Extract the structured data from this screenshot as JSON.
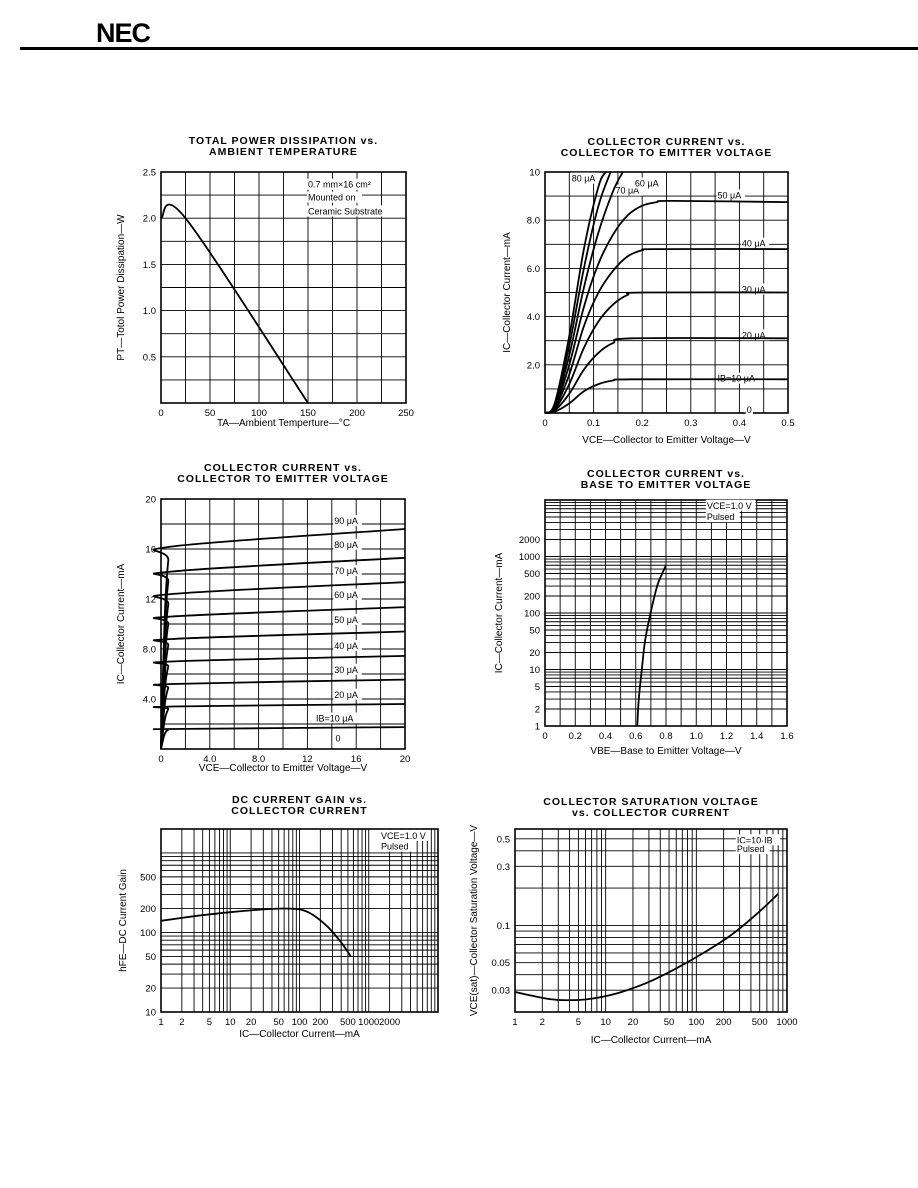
{
  "header": {
    "logo": "NEC"
  },
  "chart_data": [
    {
      "type": "line",
      "title": "TOTAL POWER DISSIPATION vs.",
      "subtitle": "AMBIENT TEMPERATURE",
      "xlabel": "TA—Ambient Temperture—°C",
      "ylabel": "PT—Totol Power Dissipation—W",
      "xscale": "linear",
      "yscale": "linear",
      "xlim": [
        0,
        250
      ],
      "ylim": [
        0,
        2.5
      ],
      "xticks": [
        0,
        50,
        100,
        150,
        200,
        250
      ],
      "xtick_labels": [
        "0",
        "50",
        "100",
        "150",
        "200",
        "250"
      ],
      "yticks": [
        0.5,
        1.0,
        1.5,
        2.0,
        2.5
      ],
      "ytick_labels": [
        "0.5",
        "1.0",
        "1.5",
        "2.0",
        "2.5"
      ],
      "grid": true,
      "annotations": [
        {
          "text": "0.7 mm×16 cm²",
          "x": 150,
          "y": 2.33
        },
        {
          "text": "Mounted on",
          "x": 150,
          "y": 2.19
        },
        {
          "text": "Ceramic Substrate",
          "x": 150,
          "y": 2.04
        }
      ],
      "series": [
        {
          "x": [
            0,
            25,
            150
          ],
          "y": [
            2.0,
            2.0,
            0.0
          ]
        }
      ]
    },
    {
      "type": "line",
      "title": "COLLECTOR CURRENT vs.",
      "subtitle": "COLLECTOR TO EMITTER VOLTAGE",
      "xlabel": "VCE—Collector to Emitter Voltage—V",
      "ylabel": "IC—Collector Current—mA",
      "xscale": "linear",
      "yscale": "linear",
      "xlim": [
        0,
        0.5
      ],
      "ylim": [
        0,
        10
      ],
      "xticks": [
        0,
        0.1,
        0.2,
        0.3,
        0.4,
        0.5
      ],
      "xtick_labels": [
        "0",
        "0.1",
        "0.2",
        "0.3",
        "0.4",
        "0.5"
      ],
      "yticks": [
        2,
        4,
        6,
        8,
        10
      ],
      "ytick_labels": [
        "2.0",
        "4.0",
        "6.0",
        "8.0",
        "10"
      ],
      "grid": true,
      "annotations": [
        {
          "text": "80 μA",
          "x": 0.055,
          "y": 9.6
        },
        {
          "text": "70 μA",
          "x": 0.145,
          "y": 9.1
        },
        {
          "text": "60 μA",
          "x": 0.185,
          "y": 9.4
        },
        {
          "text": "50 μA",
          "x": 0.355,
          "y": 8.9
        },
        {
          "text": "40 μA",
          "x": 0.405,
          "y": 6.9
        },
        {
          "text": "30 μA",
          "x": 0.405,
          "y": 5.0
        },
        {
          "text": "20 μA",
          "x": 0.405,
          "y": 3.1
        },
        {
          "text": "IB=10 μA",
          "x": 0.355,
          "y": 1.3
        },
        {
          "text": "0",
          "x": 0.415,
          "y": 0.0
        }
      ],
      "series": [
        {
          "x": [
            0,
            0.02,
            0.05,
            0.08,
            0.11,
            0.14,
            0.18,
            0.5
          ],
          "y": [
            0,
            0.05,
            0.4,
            0.9,
            1.2,
            1.35,
            1.4,
            1.4
          ]
        },
        {
          "x": [
            0,
            0.02,
            0.05,
            0.08,
            0.11,
            0.14,
            0.18,
            0.5
          ],
          "y": [
            0,
            0.1,
            0.8,
            1.8,
            2.5,
            2.9,
            3.1,
            3.1
          ]
        },
        {
          "x": [
            0,
            0.02,
            0.05,
            0.08,
            0.11,
            0.14,
            0.17,
            0.2,
            0.5
          ],
          "y": [
            0,
            0.15,
            1.2,
            2.7,
            3.8,
            4.5,
            4.9,
            5.0,
            5.0
          ]
        },
        {
          "x": [
            0,
            0.02,
            0.05,
            0.08,
            0.11,
            0.14,
            0.17,
            0.2,
            0.23,
            0.5
          ],
          "y": [
            0,
            0.2,
            1.6,
            3.6,
            5.0,
            5.9,
            6.5,
            6.75,
            6.8,
            6.8
          ]
        },
        {
          "x": [
            0,
            0.02,
            0.05,
            0.08,
            0.11,
            0.14,
            0.17,
            0.2,
            0.23,
            0.26,
            0.5
          ],
          "y": [
            0,
            0.25,
            2.0,
            4.4,
            6.2,
            7.4,
            8.2,
            8.6,
            8.75,
            8.8,
            8.75
          ]
        },
        {
          "x": [
            0,
            0.02,
            0.05,
            0.08,
            0.11,
            0.14,
            0.16
          ],
          "y": [
            0,
            0.3,
            2.4,
            5.2,
            7.5,
            9.2,
            10.0
          ]
        },
        {
          "x": [
            0,
            0.02,
            0.05,
            0.08,
            0.11,
            0.135
          ],
          "y": [
            0,
            0.35,
            2.8,
            6.0,
            8.6,
            10.0
          ]
        },
        {
          "x": [
            0,
            0.02,
            0.05,
            0.08,
            0.11,
            0.125
          ],
          "y": [
            0,
            0.4,
            3.2,
            6.8,
            9.4,
            10.0
          ]
        }
      ]
    },
    {
      "type": "line",
      "title": "COLLECTOR CURRENT vs.",
      "subtitle": "COLLECTOR TO EMITTER VOLTAGE",
      "xlabel": "VCE—Collector to Emitter Voltage—V",
      "ylabel": "IC—Collector Current—mA",
      "xscale": "linear",
      "yscale": "linear",
      "xlim": [
        0,
        20
      ],
      "ylim": [
        0,
        20
      ],
      "xticks": [
        0,
        4,
        8,
        12,
        16,
        20
      ],
      "xtick_labels": [
        "0",
        "4.0",
        "8.0",
        "12",
        "16",
        "20"
      ],
      "yticks": [
        4,
        8,
        12,
        16,
        20
      ],
      "ytick_labels": [
        "4.0",
        "8.0",
        "12",
        "16",
        "20"
      ],
      "grid": true,
      "annotations": [
        {
          "text": "90 μA",
          "x": 14.2,
          "y": 18.0
        },
        {
          "text": "80 μA",
          "x": 14.2,
          "y": 16.1
        },
        {
          "text": "70 μA",
          "x": 14.2,
          "y": 14.0
        },
        {
          "text": "60 μA",
          "x": 14.2,
          "y": 12.1
        },
        {
          "text": "50 μA",
          "x": 14.2,
          "y": 10.1
        },
        {
          "text": "40 μA",
          "x": 14.2,
          "y": 8.0
        },
        {
          "text": "30 μA",
          "x": 14.2,
          "y": 6.1
        },
        {
          "text": "20 μA",
          "x": 14.2,
          "y": 4.1
        },
        {
          "text": "IB=10 μA",
          "x": 12.7,
          "y": 2.2
        },
        {
          "text": "0",
          "x": 14.3,
          "y": 0.6
        }
      ],
      "series": [
        {
          "x": [
            0,
            0.3,
            0.6,
            0.9,
            20
          ],
          "y": [
            0,
            1.2,
            1.55,
            1.6,
            1.75
          ]
        },
        {
          "x": [
            0,
            0.3,
            0.6,
            0.9,
            20
          ],
          "y": [
            0,
            2.3,
            3.2,
            3.4,
            3.6
          ]
        },
        {
          "x": [
            0,
            0.3,
            0.6,
            0.9,
            20
          ],
          "y": [
            0,
            3.5,
            4.9,
            5.2,
            5.55
          ]
        },
        {
          "x": [
            0,
            0.3,
            0.6,
            0.9,
            20
          ],
          "y": [
            0,
            4.7,
            6.6,
            7.0,
            7.45
          ]
        },
        {
          "x": [
            0,
            0.3,
            0.6,
            0.9,
            20
          ],
          "y": [
            0,
            5.8,
            8.3,
            8.8,
            9.4
          ]
        },
        {
          "x": [
            0,
            0.3,
            0.6,
            0.9,
            20
          ],
          "y": [
            0,
            7.0,
            10.0,
            10.6,
            11.35
          ]
        },
        {
          "x": [
            0,
            0.3,
            0.6,
            0.9,
            20
          ],
          "y": [
            0,
            8.1,
            11.6,
            12.4,
            13.35
          ]
        },
        {
          "x": [
            0,
            0.3,
            0.6,
            0.9,
            20
          ],
          "y": [
            0,
            9.3,
            13.4,
            14.2,
            15.3
          ]
        },
        {
          "x": [
            0,
            0.3,
            0.6,
            0.9,
            20
          ],
          "y": [
            0,
            10.5,
            15.1,
            16.2,
            17.6
          ]
        }
      ]
    },
    {
      "type": "line",
      "title": "COLLECTOR CURRENT vs.",
      "subtitle": "BASE TO EMITTER VOLTAGE",
      "xlabel": "VBE—Base to Emitter Voltage—V",
      "ylabel": "IC—Collector Current—mA",
      "xscale": "linear",
      "yscale": "log",
      "xlim": [
        0,
        1.6
      ],
      "ylim": [
        1,
        10000
      ],
      "xticks": [
        0,
        0.2,
        0.4,
        0.6,
        0.8,
        1.0,
        1.2,
        1.4,
        1.6
      ],
      "xtick_labels": [
        "0",
        "0.2",
        "0.4",
        "0.6",
        "0.8",
        "1.0",
        "1.2",
        "1.4",
        "1.6"
      ],
      "yticks": [
        1,
        2,
        5,
        10,
        20,
        50,
        100,
        200,
        500,
        1000,
        2000
      ],
      "ytick_labels": [
        "1",
        "2",
        "5",
        "10",
        "20",
        "50",
        "100",
        "200",
        "500",
        "1000",
        "2000"
      ],
      "grid": true,
      "annotations": [
        {
          "text": "VCE=1.0 V",
          "x": 1.07,
          "y": 7000
        },
        {
          "text": "Pulsed",
          "x": 1.07,
          "y": 4400
        }
      ],
      "series": [
        {
          "x": [
            0.61,
            0.62,
            0.64,
            0.66,
            0.69,
            0.72,
            0.75,
            0.8
          ],
          "y": [
            1,
            3,
            10,
            30,
            80,
            180,
            350,
            700
          ]
        }
      ]
    },
    {
      "type": "line",
      "title": "DC CURRENT GAIN vs.",
      "subtitle": "COLLECTOR CURRENT",
      "xlabel": "IC—Collector Current—mA",
      "ylabel": "hFE—DC Current Gain",
      "xscale": "log",
      "yscale": "log",
      "xlim": [
        1,
        10000
      ],
      "ylim": [
        10,
        2000
      ],
      "xticks": [
        1,
        2,
        5,
        10,
        20,
        50,
        100,
        200,
        500,
        1000,
        2000
      ],
      "xtick_labels": [
        "1",
        "2",
        "5",
        "10",
        "20",
        "50",
        "100",
        "200",
        "500",
        "1000",
        "2000"
      ],
      "yticks": [
        10,
        20,
        50,
        100,
        200,
        500
      ],
      "ytick_labels": [
        "10",
        "20",
        "50",
        "100",
        "200",
        "500"
      ],
      "grid": true,
      "annotations": [
        {
          "text": "VCE=1.0 V",
          "x": 1500,
          "y": 1500
        },
        {
          "text": "Pulsed",
          "x": 1500,
          "y": 1100
        }
      ],
      "series": [
        {
          "x": [
            1,
            3,
            10,
            30,
            60,
            100,
            150,
            250,
            400,
            550
          ],
          "y": [
            140,
            160,
            180,
            195,
            200,
            195,
            170,
            120,
            75,
            50
          ]
        }
      ]
    },
    {
      "type": "line",
      "title": "COLLECTOR SATURATION VOLTAGE",
      "subtitle": "vs. COLLECTOR CURRENT",
      "xlabel": "IC—Collector Current—mA",
      "ylabel": "VCE(sat)—Collector Saturation Voltage—V",
      "xscale": "log",
      "yscale": "log",
      "xlim": [
        1,
        1000
      ],
      "ylim": [
        0.02,
        0.6
      ],
      "xticks": [
        1,
        2,
        5,
        10,
        20,
        50,
        100,
        200,
        500,
        1000
      ],
      "xtick_labels": [
        "1",
        "2",
        "5",
        "10",
        "20",
        "50",
        "100",
        "200",
        "500",
        "1000"
      ],
      "yticks": [
        0.03,
        0.05,
        0.1,
        0.3,
        0.5
      ],
      "ytick_labels": [
        "0.03",
        "0.05",
        "0.1",
        "0.3",
        "0.5"
      ],
      "grid": true,
      "annotations": [
        {
          "text": "IC=10·IB",
          "x": 280,
          "y": 0.46
        },
        {
          "text": "Pulsed",
          "x": 280,
          "y": 0.39
        }
      ],
      "series": [
        {
          "x": [
            1,
            2,
            3,
            5,
            8,
            15,
            30,
            60,
            120,
            250,
            500,
            800
          ],
          "y": [
            0.029,
            0.026,
            0.025,
            0.025,
            0.026,
            0.029,
            0.035,
            0.045,
            0.06,
            0.085,
            0.13,
            0.18
          ]
        }
      ]
    }
  ]
}
